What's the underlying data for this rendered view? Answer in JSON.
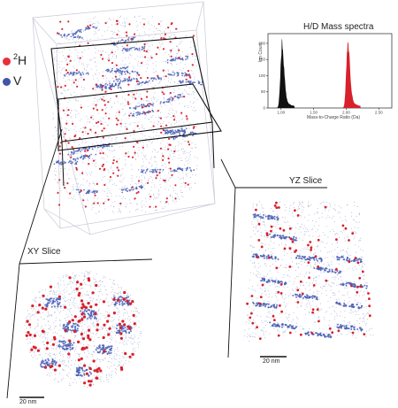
{
  "legend": {
    "hydrogen": {
      "mass": "2",
      "symbol": "H",
      "color": "#e8303a"
    },
    "vanadium": {
      "symbol": "V",
      "color": "#4154a8"
    }
  },
  "mass_spectrum": {
    "title": "H/D Mass spectra",
    "xlabel": "Mass-to-Charge Ratio (Da)",
    "ylabel": "Ion Count",
    "x_ticks": [
      "1.00",
      "1.50",
      "2.00",
      "2.50"
    ],
    "y_ticks": [
      "0",
      "50",
      "100",
      "150",
      "200"
    ],
    "xlim": [
      0.8,
      2.7
    ],
    "ylim": [
      0,
      230
    ],
    "series": [
      {
        "peak_center": 1.01,
        "peak_height": 185,
        "color": "#111111"
      },
      {
        "peak_center": 2.02,
        "peak_height": 195,
        "color": "#d8202a"
      }
    ]
  },
  "slices": {
    "yz": {
      "title": "YZ Slice",
      "scale_label": "20 nm"
    },
    "xy": {
      "title": "XY Slice",
      "scale_label": "20 nm"
    }
  },
  "colors": {
    "v_atoms": "#4a5fb5",
    "h_atoms": "#d8202a",
    "box": "#bbbbbb"
  }
}
